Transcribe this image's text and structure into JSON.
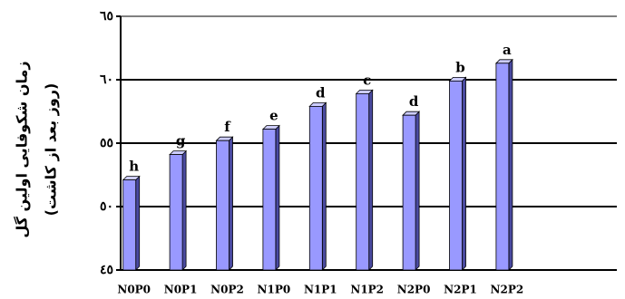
{
  "chart_data": {
    "type": "bar",
    "y_label": [
      "زمان شکوفایی اولین گل",
      "(روز بعد از کاشت)"
    ],
    "categories": [
      "N0P0",
      "N0P1",
      "N0P2",
      "N1P0",
      "N1P1",
      "N1P2",
      "N2P0",
      "N2P1",
      "N2P2",
      null
    ],
    "values": [
      52.1,
      54.1,
      55.2,
      56.1,
      57.9,
      58.9,
      57.2,
      59.9,
      61.3,
      null
    ],
    "letters": [
      "h",
      "g",
      "f",
      "e",
      "d",
      "c",
      "d",
      "b",
      "a",
      null
    ],
    "color": "#9999ff",
    "ylim": [
      45,
      65
    ],
    "yticks": [
      {
        "value": 45,
        "label": "٤٥"
      },
      {
        "value": 50,
        "label": "٥٠"
      },
      {
        "value": 55,
        "label": "٥٥"
      },
      {
        "value": 60,
        "label": "٦٠"
      },
      {
        "value": 65,
        "label": "٦٥"
      }
    ],
    "grid": true
  }
}
